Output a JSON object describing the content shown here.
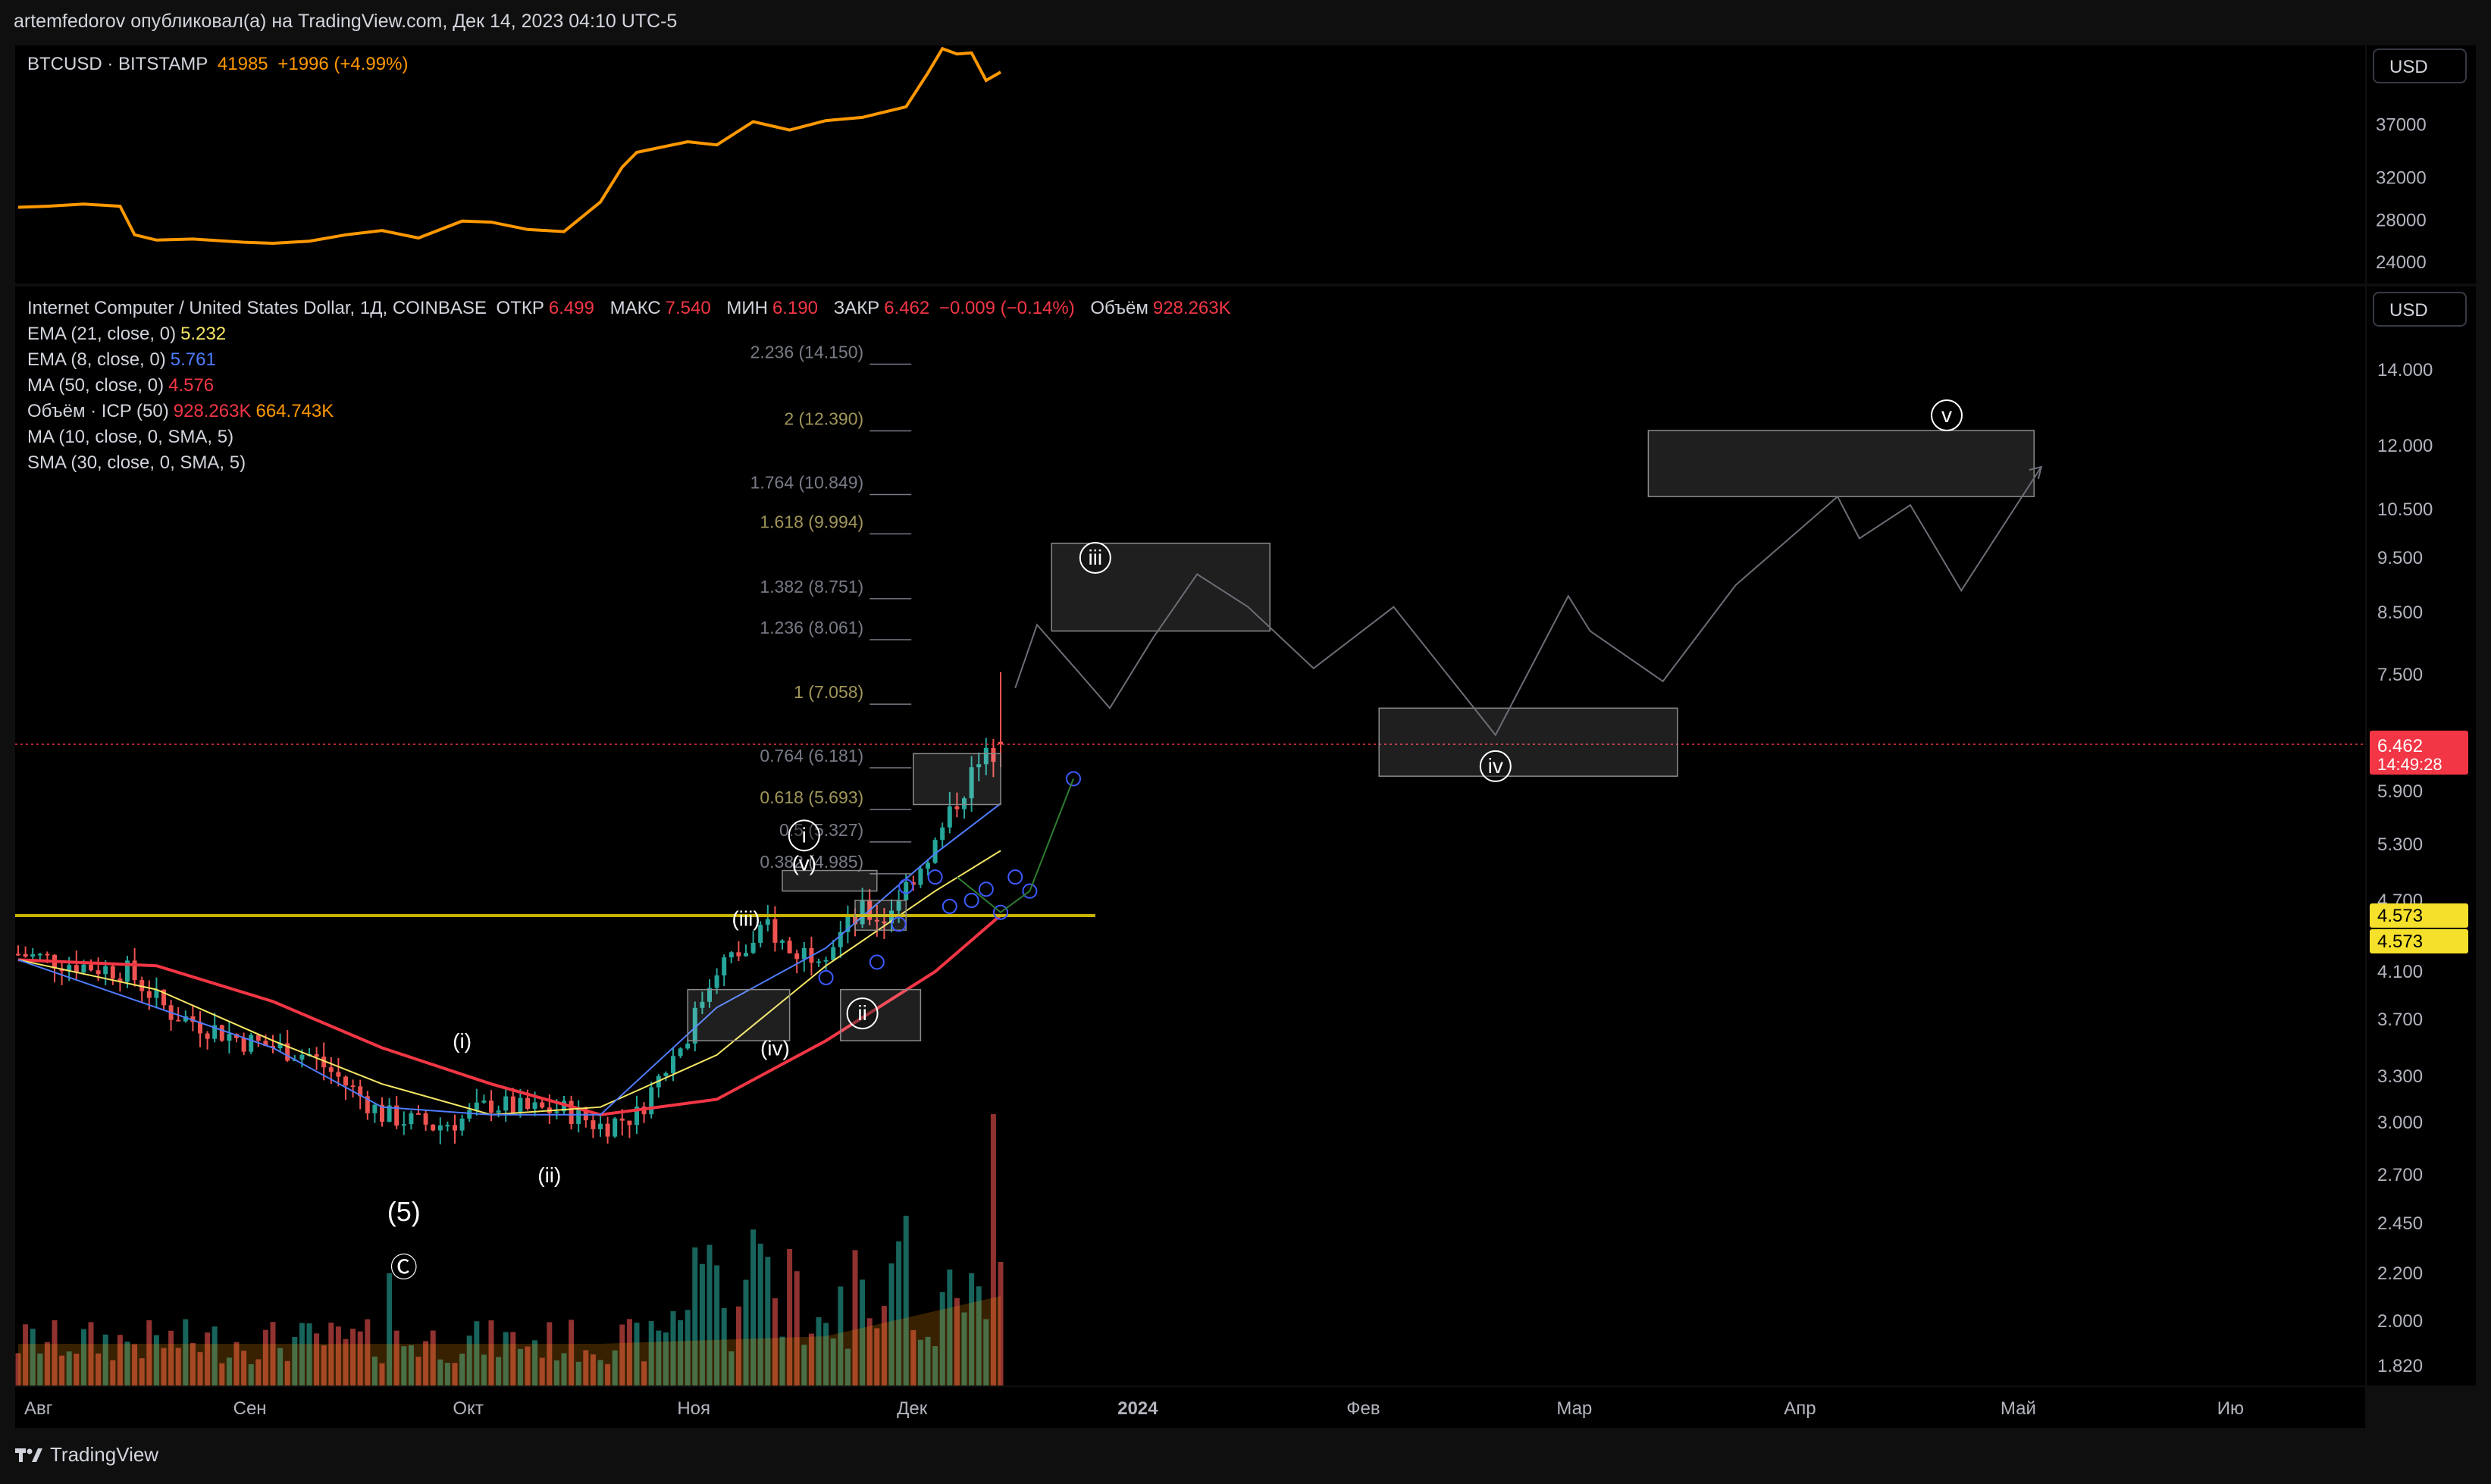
{
  "header": {
    "publish_line": "artemfedorov опубликовал(а) на TradingView.com, Дек 14, 2023 04:10 UTC-5"
  },
  "btc_panel": {
    "symbol": "BTCUSD · BITSTAMP",
    "price": "41985",
    "change": "+1996 (+4.99%)",
    "currency": "USD",
    "price_ticks": [
      "37000",
      "32000",
      "28000",
      "24000"
    ]
  },
  "main_panel": {
    "currency": "USD",
    "legend": {
      "symbol": "Internet Computer / United States Dollar, 1Д, COINBASE",
      "open_label": "ОТКР",
      "open": "6.499",
      "high_label": "МАКС",
      "high": "7.540",
      "low_label": "МИН",
      "low": "6.190",
      "close_label": "ЗАКР",
      "close": "6.462",
      "change": "−0.009 (−0.14%)",
      "volume_label": "Объём",
      "volume": "928.263K"
    },
    "indicators": [
      {
        "name": "EMA (21, close, 0)",
        "value": "5.232",
        "color": "#f5e663"
      },
      {
        "name": "EMA (8, close, 0)",
        "value": "5.761",
        "color": "#4f7cff"
      },
      {
        "name": "MA (50, close, 0)",
        "value": "4.576",
        "color": "#f23645"
      },
      {
        "name": "Объём · ICP (50)",
        "value": "928.263K",
        "value2": "664.743K",
        "color": "#f23645",
        "color2": "#ff9800"
      },
      {
        "name": "MA (10, close, 0, SMA, 5)",
        "value": "",
        "color": "#d1d4dc"
      },
      {
        "name": "SMA (30, close, 0, SMA, 5)",
        "value": "",
        "color": "#d1d4dc"
      }
    ],
    "price_ticks": [
      "14.000",
      "12.000",
      "10.500",
      "9.500",
      "8.500",
      "7.500",
      "5.900",
      "5.300",
      "4.700",
      "4.100",
      "3.700",
      "3.300",
      "3.000",
      "2.700",
      "2.450",
      "2.200",
      "2.000",
      "1.820"
    ],
    "current_price": {
      "price": "6.462",
      "countdown": "14:49:28",
      "color": "#f23645"
    },
    "level_tag_1": "4.573",
    "level_tag_2": "4.573",
    "time_ticks": [
      "Авг",
      "Сен",
      "Окт",
      "Ноя",
      "Дек",
      "2024",
      "Фев",
      "Мар",
      "Апр",
      "Май",
      "Ию"
    ]
  },
  "chart_data": [
    {
      "type": "line",
      "series": [
        {
          "name": "BTCUSD · BITSTAMP",
          "color": "#ff9800",
          "x": [
            "2023-08-01",
            "2023-08-05",
            "2023-08-10",
            "2023-08-15",
            "2023-08-17",
            "2023-08-20",
            "2023-08-25",
            "2023-09-01",
            "2023-09-05",
            "2023-09-10",
            "2023-09-15",
            "2023-09-20",
            "2023-09-25",
            "2023-10-01",
            "2023-10-05",
            "2023-10-10",
            "2023-10-15",
            "2023-10-20",
            "2023-10-23",
            "2023-10-25",
            "2023-11-01",
            "2023-11-05",
            "2023-11-10",
            "2023-11-15",
            "2023-11-20",
            "2023-11-25",
            "2023-12-01",
            "2023-12-04",
            "2023-12-06",
            "2023-12-08",
            "2023-12-10",
            "2023-12-12",
            "2023-12-14"
          ],
          "values": [
            29200,
            29300,
            29500,
            29300,
            26600,
            26100,
            26200,
            25900,
            25800,
            26000,
            26600,
            27000,
            26300,
            27900,
            27800,
            27100,
            26900,
            29700,
            33000,
            34400,
            35400,
            35100,
            37300,
            36500,
            37400,
            37700,
            38700,
            41900,
            44200,
            43700,
            43800,
            41200,
            41985
          ]
        }
      ],
      "ylim": [
        24000,
        44500
      ]
    },
    {
      "type": "candlestick",
      "symbol": "Internet Computer / United States Dollar, 1Д, COINBASE",
      "last": {
        "open": 6.499,
        "high": 7.54,
        "low": 6.19,
        "close": 6.462,
        "volume": "928.263K"
      },
      "price_path": {
        "dates": [
          "2023-08-01",
          "2023-08-10",
          "2023-08-16",
          "2023-08-22",
          "2023-09-01",
          "2023-09-10",
          "2023-09-20",
          "2023-09-27",
          "2023-10-01",
          "2023-10-05",
          "2023-10-10",
          "2023-10-15",
          "2023-10-20",
          "2023-10-25",
          "2023-11-01",
          "2023-11-05",
          "2023-11-10",
          "2023-11-12",
          "2023-11-15",
          "2023-11-20",
          "2023-11-25",
          "2023-11-28",
          "2023-12-01",
          "2023-12-05",
          "2023-12-08",
          "2023-12-10",
          "2023-12-12",
          "2023-12-14"
        ],
        "closes": [
          4.25,
          4.15,
          4.1,
          3.75,
          3.55,
          3.45,
          3.05,
          2.98,
          3.02,
          3.12,
          3.08,
          3.08,
          2.98,
          3.05,
          3.6,
          4.15,
          4.3,
          4.5,
          4.25,
          4.3,
          4.6,
          4.55,
          4.85,
          5.3,
          5.8,
          6.1,
          6.3,
          6.462
        ]
      },
      "ema21": {
        "dates": [
          "2023-08-01",
          "2023-08-20",
          "2023-09-05",
          "2023-09-20",
          "2023-10-05",
          "2023-10-20",
          "2023-11-05",
          "2023-11-20",
          "2023-12-05",
          "2023-12-14"
        ],
        "values": [
          4.2,
          3.95,
          3.55,
          3.25,
          3.05,
          3.1,
          3.45,
          4.15,
          4.8,
          5.232
        ]
      },
      "ema8": {
        "dates": [
          "2023-08-01",
          "2023-08-20",
          "2023-09-05",
          "2023-09-20",
          "2023-10-05",
          "2023-10-20",
          "2023-11-05",
          "2023-11-20",
          "2023-12-05",
          "2023-12-14"
        ],
        "values": [
          4.2,
          3.8,
          3.5,
          3.1,
          3.05,
          3.05,
          3.8,
          4.3,
          5.2,
          5.761
        ]
      },
      "ma50": {
        "dates": [
          "2023-08-01",
          "2023-08-20",
          "2023-09-05",
          "2023-09-20",
          "2023-10-05",
          "2023-10-20",
          "2023-11-05",
          "2023-11-20",
          "2023-12-05",
          "2023-12-14"
        ],
        "values": [
          4.2,
          4.15,
          3.85,
          3.5,
          3.25,
          3.05,
          3.15,
          3.55,
          4.1,
          4.576
        ]
      },
      "volume_ma": "664.743K"
    },
    {
      "type": "annotations",
      "fib_levels": [
        {
          "label": "2.236 (14.150)",
          "value": 14.15,
          "color": "#787b86"
        },
        {
          "label": "2 (12.390)",
          "value": 12.39,
          "color": "#a0965a"
        },
        {
          "label": "1.764 (10.849)",
          "value": 10.849,
          "color": "#787b86"
        },
        {
          "label": "1.618 (9.994)",
          "value": 9.994,
          "color": "#a0965a"
        },
        {
          "label": "1.382 (8.751)",
          "value": 8.751,
          "color": "#787b86"
        },
        {
          "label": "1.236 (8.061)",
          "value": 8.061,
          "color": "#787b86"
        },
        {
          "label": "1 (7.058)",
          "value": 7.058,
          "color": "#a0965a"
        },
        {
          "label": "0.764 (6.181)",
          "value": 6.181,
          "color": "#787b86"
        },
        {
          "label": "0.618 (5.693)",
          "value": 5.693,
          "color": "#a0965a"
        },
        {
          "label": "0.5 (5.327)",
          "value": 5.327,
          "color": "#787b86"
        },
        {
          "label": "0.382 (4.985)",
          "value": 4.985,
          "color": "#787b86"
        }
      ],
      "horizontal_level": {
        "value": 4.573,
        "color": "#c8b400"
      },
      "wave_labels": [
        {
          "text": "(i)",
          "date": "2023-10-01",
          "price": 3.55
        },
        {
          "text": "(ii)",
          "date": "2023-10-13",
          "price": 2.7
        },
        {
          "text": "(iii)",
          "date": "2023-11-09",
          "price": 4.55
        },
        {
          "text": "(iv)",
          "date": "2023-11-13",
          "price": 3.5
        },
        {
          "text": "(v)",
          "date": "2023-11-17",
          "price": 5.1
        },
        {
          "text": "(5)",
          "date": "2023-09-23",
          "price": 2.5
        },
        {
          "text": "Ⓒ",
          "date": "2023-09-23",
          "price": 2.22
        },
        {
          "text": "i",
          "circled": true,
          "date": "2023-11-17",
          "price": 5.4
        },
        {
          "text": "ii",
          "circled": true,
          "date": "2023-11-25",
          "price": 3.75
        },
        {
          "text": "iii",
          "circled": true,
          "date": "2023-12-27",
          "price": 9.5
        },
        {
          "text": "iv",
          "circled": true,
          "date": "2024-02-20",
          "price": 6.2
        },
        {
          "text": "v",
          "circled": true,
          "date": "2024-04-22",
          "price": 12.8
        }
      ],
      "target_boxes": [
        {
          "d1": "2023-12-21",
          "d2": "2024-01-20",
          "p1": 8.2,
          "p2": 9.8
        },
        {
          "d1": "2024-02-04",
          "d2": "2024-03-16",
          "p1": 6.08,
          "p2": 7.0
        },
        {
          "d1": "2024-03-12",
          "d2": "2024-05-04",
          "p1": 10.8,
          "p2": 12.4
        },
        {
          "d1": "2023-12-02",
          "d2": "2023-12-14",
          "p1": 5.75,
          "p2": 6.35
        },
        {
          "d1": "2023-11-14",
          "d2": "2023-11-27",
          "p1": 4.8,
          "p2": 5.02
        },
        {
          "d1": "2023-11-01",
          "d2": "2023-11-15",
          "p1": 3.55,
          "p2": 3.95
        },
        {
          "d1": "2023-11-22",
          "d2": "2023-12-03",
          "p1": 3.55,
          "p2": 3.95
        },
        {
          "d1": "2023-11-24",
          "d2": "2023-12-01",
          "p1": 4.45,
          "p2": 4.7
        }
      ],
      "projection_path": {
        "dates": [
          "2023-12-16",
          "2023-12-19",
          "2023-12-25",
          "2023-12-29",
          "2024-01-04",
          "2024-01-10",
          "2024-01-17",
          "2024-01-26",
          "2024-02-06",
          "2024-02-20",
          "2024-03-01",
          "2024-03-04",
          "2024-03-14",
          "2024-03-24",
          "2024-04-07",
          "2024-04-10",
          "2024-04-17",
          "2024-04-24",
          "2024-05-05"
        ],
        "prices": [
          7.3,
          8.3,
          7.5,
          7.0,
          8.1,
          9.2,
          8.6,
          7.6,
          8.6,
          6.6,
          8.8,
          8.2,
          7.4,
          9.0,
          10.8,
          9.9,
          10.6,
          8.9,
          11.5
        ]
      }
    }
  ]
}
